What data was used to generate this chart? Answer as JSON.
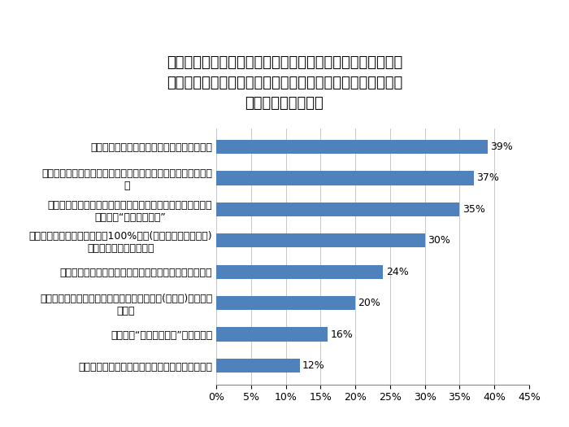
{
  "title": "下記は、「島の太陽と潮風で育った青汁」のおすすめポイン\nトになります。魅力を感じるものにチェックを入れてくださ\nい。（複数選択可）",
  "categories": [
    "食後に上がる血糖値を抑える機能のある青汁",
    "野菜不足・野菜嫌いで食物繊維を簡単に摂取したい方にオスス\nメ",
    "機能性表示食品として消費者庁に届け出受理された機能性表\n示食品の“まじめな青汁”",
    "無農薬、無化学肥料で育った100%国産(鹿児島県、喜界島産)\nで素材にこだわった青汁",
    "毎日溜め込まないで、スッキリできることを期待出来る",
    "ミネラル豊富な喜界島の大地で栽培した素材(長命草)を使用し\nている",
    "美味しく“ゆる糖質オフ”できる青汁",
    "麹に強い素材だから、料理やスイーツにつかえる"
  ],
  "values": [
    39,
    37,
    35,
    30,
    24,
    20,
    16,
    12
  ],
  "bar_color": "#4F81BD",
  "xlim": [
    0,
    45
  ],
  "xticks": [
    0,
    5,
    10,
    15,
    20,
    25,
    30,
    35,
    40,
    45
  ],
  "title_fontsize": 13,
  "label_fontsize": 9,
  "tick_fontsize": 9,
  "value_fontsize": 9,
  "background_color": "#ffffff",
  "bar_height": 0.45
}
